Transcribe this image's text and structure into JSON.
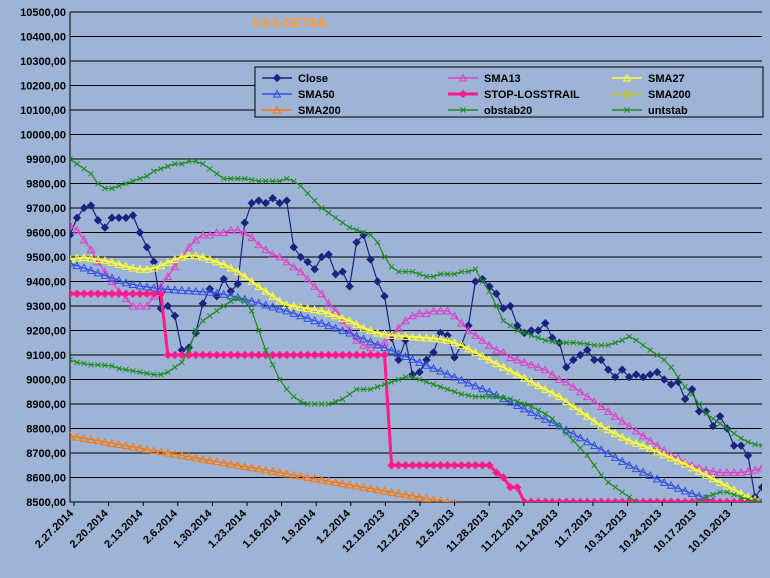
{
  "chart_data": {
    "type": "line",
    "title": "DAX-DETAIL",
    "ylim": [
      8500,
      10500
    ],
    "yticks": [
      "10500,00",
      "10400,00",
      "10300,00",
      "10200,00",
      "10100,00",
      "10000,00",
      "9900,00",
      "9800,00",
      "9700,00",
      "9600,00",
      "9500,00",
      "9400,00",
      "9300,00",
      "9200,00",
      "9100,00",
      "9000,00",
      "8900,00",
      "8800,00",
      "8700,00",
      "8600,00",
      "8500,00"
    ],
    "xticks": [
      "2.27.2014",
      "2.20.2014",
      "2.13.2014",
      "2.6.2014",
      "1.30.2014",
      "1.23.2014",
      "1.16.2014",
      "1.9.2014",
      "1.2.2014",
      "12.19.2013",
      "12.12.2013",
      "12.5.2013",
      "11.28.2013",
      "11.21.2013",
      "11.14.2013",
      "11.7.2013",
      "10.31.2013",
      "10.24.2013",
      "10.17.2013",
      "10.10.2013"
    ],
    "grid": true,
    "legend_position": "top-right",
    "series": [
      {
        "name": "Close",
        "color": "#1A237E",
        "marker": "diamond",
        "values": [
          9590,
          9660,
          9700,
          9710,
          9650,
          9620,
          9660,
          9660,
          9660,
          9670,
          9600,
          9540,
          9480,
          9290,
          9300,
          9260,
          9120,
          9130,
          9190,
          9310,
          9370,
          9340,
          9410,
          9360,
          9390,
          9640,
          9720,
          9730,
          9720,
          9740,
          9720,
          9730,
          9540,
          9500,
          9480,
          9450,
          9500,
          9510,
          9430,
          9440,
          9380,
          9560,
          9590,
          9490,
          9400,
          9340,
          9170,
          9080,
          9160,
          9020,
          9030,
          9080,
          9110,
          9190,
          9180,
          9090,
          9140,
          9220,
          9400,
          9410,
          9380,
          9350,
          9290,
          9300,
          9220,
          9190,
          9200,
          9200,
          9230,
          9170,
          9150,
          9050,
          9080,
          9100,
          9120,
          9080,
          9080,
          9040,
          9010,
          9040,
          9010,
          9020,
          9010,
          9020,
          9030,
          9000,
          8980,
          8990,
          8920,
          8960,
          8870,
          8870,
          8810,
          8850,
          8800,
          8730,
          8730,
          8690,
          8520,
          8560
        ]
      },
      {
        "name": "SMA13",
        "color": "#E040C8",
        "marker": "triangle",
        "values": [
          9630,
          9610,
          9570,
          9530,
          9480,
          9440,
          9400,
          9360,
          9330,
          9300,
          9300,
          9300,
          9340,
          9380,
          9420,
          9460,
          9500,
          9540,
          9570,
          9590,
          9590,
          9600,
          9600,
          9610,
          9610,
          9600,
          9580,
          9550,
          9530,
          9510,
          9500,
          9480,
          9460,
          9440,
          9410,
          9380,
          9350,
          9310,
          9280,
          9240,
          9200,
          9160,
          9140,
          9130,
          9140,
          9150,
          9180,
          9210,
          9240,
          9260,
          9270,
          9270,
          9280,
          9280,
          9280,
          9260,
          9230,
          9200,
          9180,
          9160,
          9140,
          9120,
          9110,
          9090,
          9080,
          9070,
          9060,
          9050,
          9040,
          9020,
          9000,
          8990,
          8970,
          8950,
          8930,
          8910,
          8890,
          8870,
          8850,
          8830,
          8810,
          8790,
          8770,
          8750,
          8730,
          8710,
          8690,
          8680,
          8660,
          8650,
          8640,
          8630,
          8625,
          8620,
          8620,
          8620,
          8620,
          8625,
          8630,
          8640
        ]
      },
      {
        "name": "SMA27",
        "color": "#FFFF33",
        "marker": "triangle",
        "values": [
          9490,
          9495,
          9498,
          9495,
          9490,
          9485,
          9478,
          9470,
          9462,
          9455,
          9450,
          9450,
          9455,
          9465,
          9478,
          9490,
          9500,
          9505,
          9505,
          9500,
          9490,
          9480,
          9470,
          9455,
          9440,
          9420,
          9400,
          9380,
          9360,
          9340,
          9320,
          9305,
          9300,
          9295,
          9290,
          9285,
          9280,
          9270,
          9260,
          9250,
          9240,
          9225,
          9210,
          9200,
          9190,
          9185,
          9180,
          9178,
          9176,
          9174,
          9172,
          9170,
          9168,
          9165,
          9160,
          9150,
          9140,
          9125,
          9110,
          9095,
          9080,
          9065,
          9050,
          9035,
          9020,
          9005,
          8990,
          8975,
          8960,
          8945,
          8930,
          8910,
          8890,
          8870,
          8850,
          8830,
          8810,
          8795,
          8780,
          8765,
          8750,
          8740,
          8730,
          8718,
          8705,
          8692,
          8680,
          8668,
          8655,
          8640,
          8625,
          8610,
          8595,
          8580,
          8565,
          8550,
          8535,
          8520,
          8510,
          8500
        ]
      },
      {
        "name": "SMA50",
        "color": "#3050E0",
        "marker": "triangle",
        "values": [
          9475,
          9465,
          9455,
          9445,
          9435,
          9425,
          9415,
          9405,
          9395,
          9388,
          9382,
          9378,
          9374,
          9370,
          9368,
          9366,
          9364,
          9362,
          9360,
          9358,
          9356,
          9352,
          9348,
          9342,
          9336,
          9328,
          9320,
          9312,
          9304,
          9296,
          9288,
          9280,
          9270,
          9260,
          9250,
          9240,
          9230,
          9220,
          9210,
          9200,
          9190,
          9178,
          9166,
          9154,
          9142,
          9130,
          9118,
          9106,
          9094,
          9082,
          9070,
          9058,
          9046,
          9034,
          9022,
          9010,
          8998,
          8986,
          8974,
          8962,
          8950,
          8936,
          8922,
          8908,
          8894,
          8880,
          8866,
          8852,
          8838,
          8824,
          8810,
          8794,
          8778,
          8762,
          8746,
          8730,
          8714,
          8698,
          8682,
          8666,
          8650,
          8636,
          8622,
          8608,
          8594,
          8580,
          8568,
          8556,
          8545,
          8535,
          8525,
          8515,
          8505,
          8498,
          8490,
          8485,
          8480,
          8475,
          8470,
          8465
        ]
      },
      {
        "name": "STOP-LOSSTRAIL",
        "color": "#FF1A8C",
        "marker": "diamond",
        "values": [
          9350,
          9350,
          9350,
          9350,
          9350,
          9350,
          9350,
          9350,
          9350,
          9350,
          9350,
          9350,
          9350,
          9350,
          9100,
          9100,
          9100,
          9100,
          9100,
          9100,
          9100,
          9100,
          9100,
          9100,
          9100,
          9100,
          9100,
          9100,
          9100,
          9100,
          9100,
          9100,
          9100,
          9100,
          9100,
          9100,
          9100,
          9100,
          9100,
          9100,
          9100,
          9100,
          9100,
          9100,
          9100,
          9100,
          8650,
          8650,
          8650,
          8650,
          8650,
          8650,
          8650,
          8650,
          8650,
          8650,
          8650,
          8650,
          8650,
          8650,
          8650,
          8620,
          8600,
          8560,
          8560,
          8500,
          8500,
          8500,
          8500,
          8500,
          8500,
          8500,
          8500,
          8500,
          8500,
          8500,
          8500,
          8500,
          8500,
          8500,
          8500,
          8500,
          8500,
          8500,
          8500,
          8500,
          8500,
          8500,
          8500,
          8500,
          8500,
          8500,
          8500,
          8500,
          8500,
          8500,
          8500,
          8500,
          8500,
          8500
        ]
      },
      {
        "name": "SMA200",
        "color": "#C8C800",
        "marker": "triangle",
        "values": []
      },
      {
        "name": "SMA200",
        "color": "#FF7700",
        "marker": "triangle",
        "values": [
          8770,
          8765,
          8760,
          8755,
          8750,
          8745,
          8740,
          8735,
          8730,
          8725,
          8720,
          8715,
          8710,
          8705,
          8700,
          8695,
          8690,
          8685,
          8680,
          8675,
          8670,
          8665,
          8660,
          8655,
          8650,
          8645,
          8640,
          8635,
          8630,
          8625,
          8620,
          8615,
          8610,
          8605,
          8600,
          8595,
          8590,
          8585,
          8580,
          8575,
          8570,
          8565,
          8560,
          8555,
          8550,
          8545,
          8540,
          8535,
          8530,
          8525,
          8520,
          8515,
          8510,
          8505,
          8500,
          8495
        ]
      },
      {
        "name": "obstab20",
        "color": "#1E8C1E",
        "marker": "x",
        "values": [
          9900,
          9880,
          9860,
          9840,
          9800,
          9780,
          9780,
          9790,
          9800,
          9810,
          9820,
          9830,
          9850,
          9860,
          9870,
          9880,
          9880,
          9890,
          9890,
          9880,
          9860,
          9840,
          9820,
          9820,
          9820,
          9820,
          9815,
          9810,
          9810,
          9810,
          9810,
          9820,
          9810,
          9790,
          9760,
          9730,
          9700,
          9680,
          9660,
          9640,
          9620,
          9610,
          9600,
          9590,
          9560,
          9500,
          9460,
          9440,
          9440,
          9440,
          9430,
          9420,
          9420,
          9430,
          9430,
          9430,
          9440,
          9440,
          9450,
          9400,
          9360,
          9300,
          9240,
          9220,
          9200,
          9190,
          9180,
          9170,
          9160,
          9155,
          9150,
          9150,
          9150,
          9148,
          9145,
          9140,
          9140,
          9140,
          9150,
          9160,
          9175,
          9160,
          9140,
          9120,
          9100,
          9080,
          9050,
          9010,
          8970,
          8940,
          8900,
          8860,
          8840,
          8820,
          8800,
          8780,
          8760,
          8745,
          8735,
          8730
        ]
      },
      {
        "name": "untstab",
        "color": "#1E8C1E",
        "marker": "x",
        "values": [
          9080,
          9070,
          9065,
          9060,
          9060,
          9058,
          9055,
          9045,
          9040,
          9035,
          9030,
          9025,
          9020,
          9020,
          9030,
          9050,
          9070,
          9120,
          9200,
          9240,
          9260,
          9280,
          9300,
          9320,
          9330,
          9320,
          9280,
          9200,
          9120,
          9060,
          9000,
          8960,
          8930,
          8910,
          8900,
          8900,
          8900,
          8900,
          8910,
          8920,
          8940,
          8960,
          8960,
          8960,
          8970,
          8980,
          8990,
          9000,
          9010,
          9010,
          9000,
          8990,
          8980,
          8970,
          8960,
          8950,
          8940,
          8935,
          8930,
          8930,
          8930,
          8930,
          8925,
          8920,
          8910,
          8900,
          8890,
          8875,
          8860,
          8840,
          8810,
          8780,
          8750,
          8720,
          8690,
          8650,
          8610,
          8580,
          8560,
          8540,
          8520,
          8500,
          8490,
          8480,
          8470,
          8470,
          8470,
          8470,
          8480,
          8490,
          8500,
          8520,
          8530,
          8540,
          8540,
          8530,
          8520,
          8510,
          8505,
          8500
        ]
      }
    ]
  }
}
